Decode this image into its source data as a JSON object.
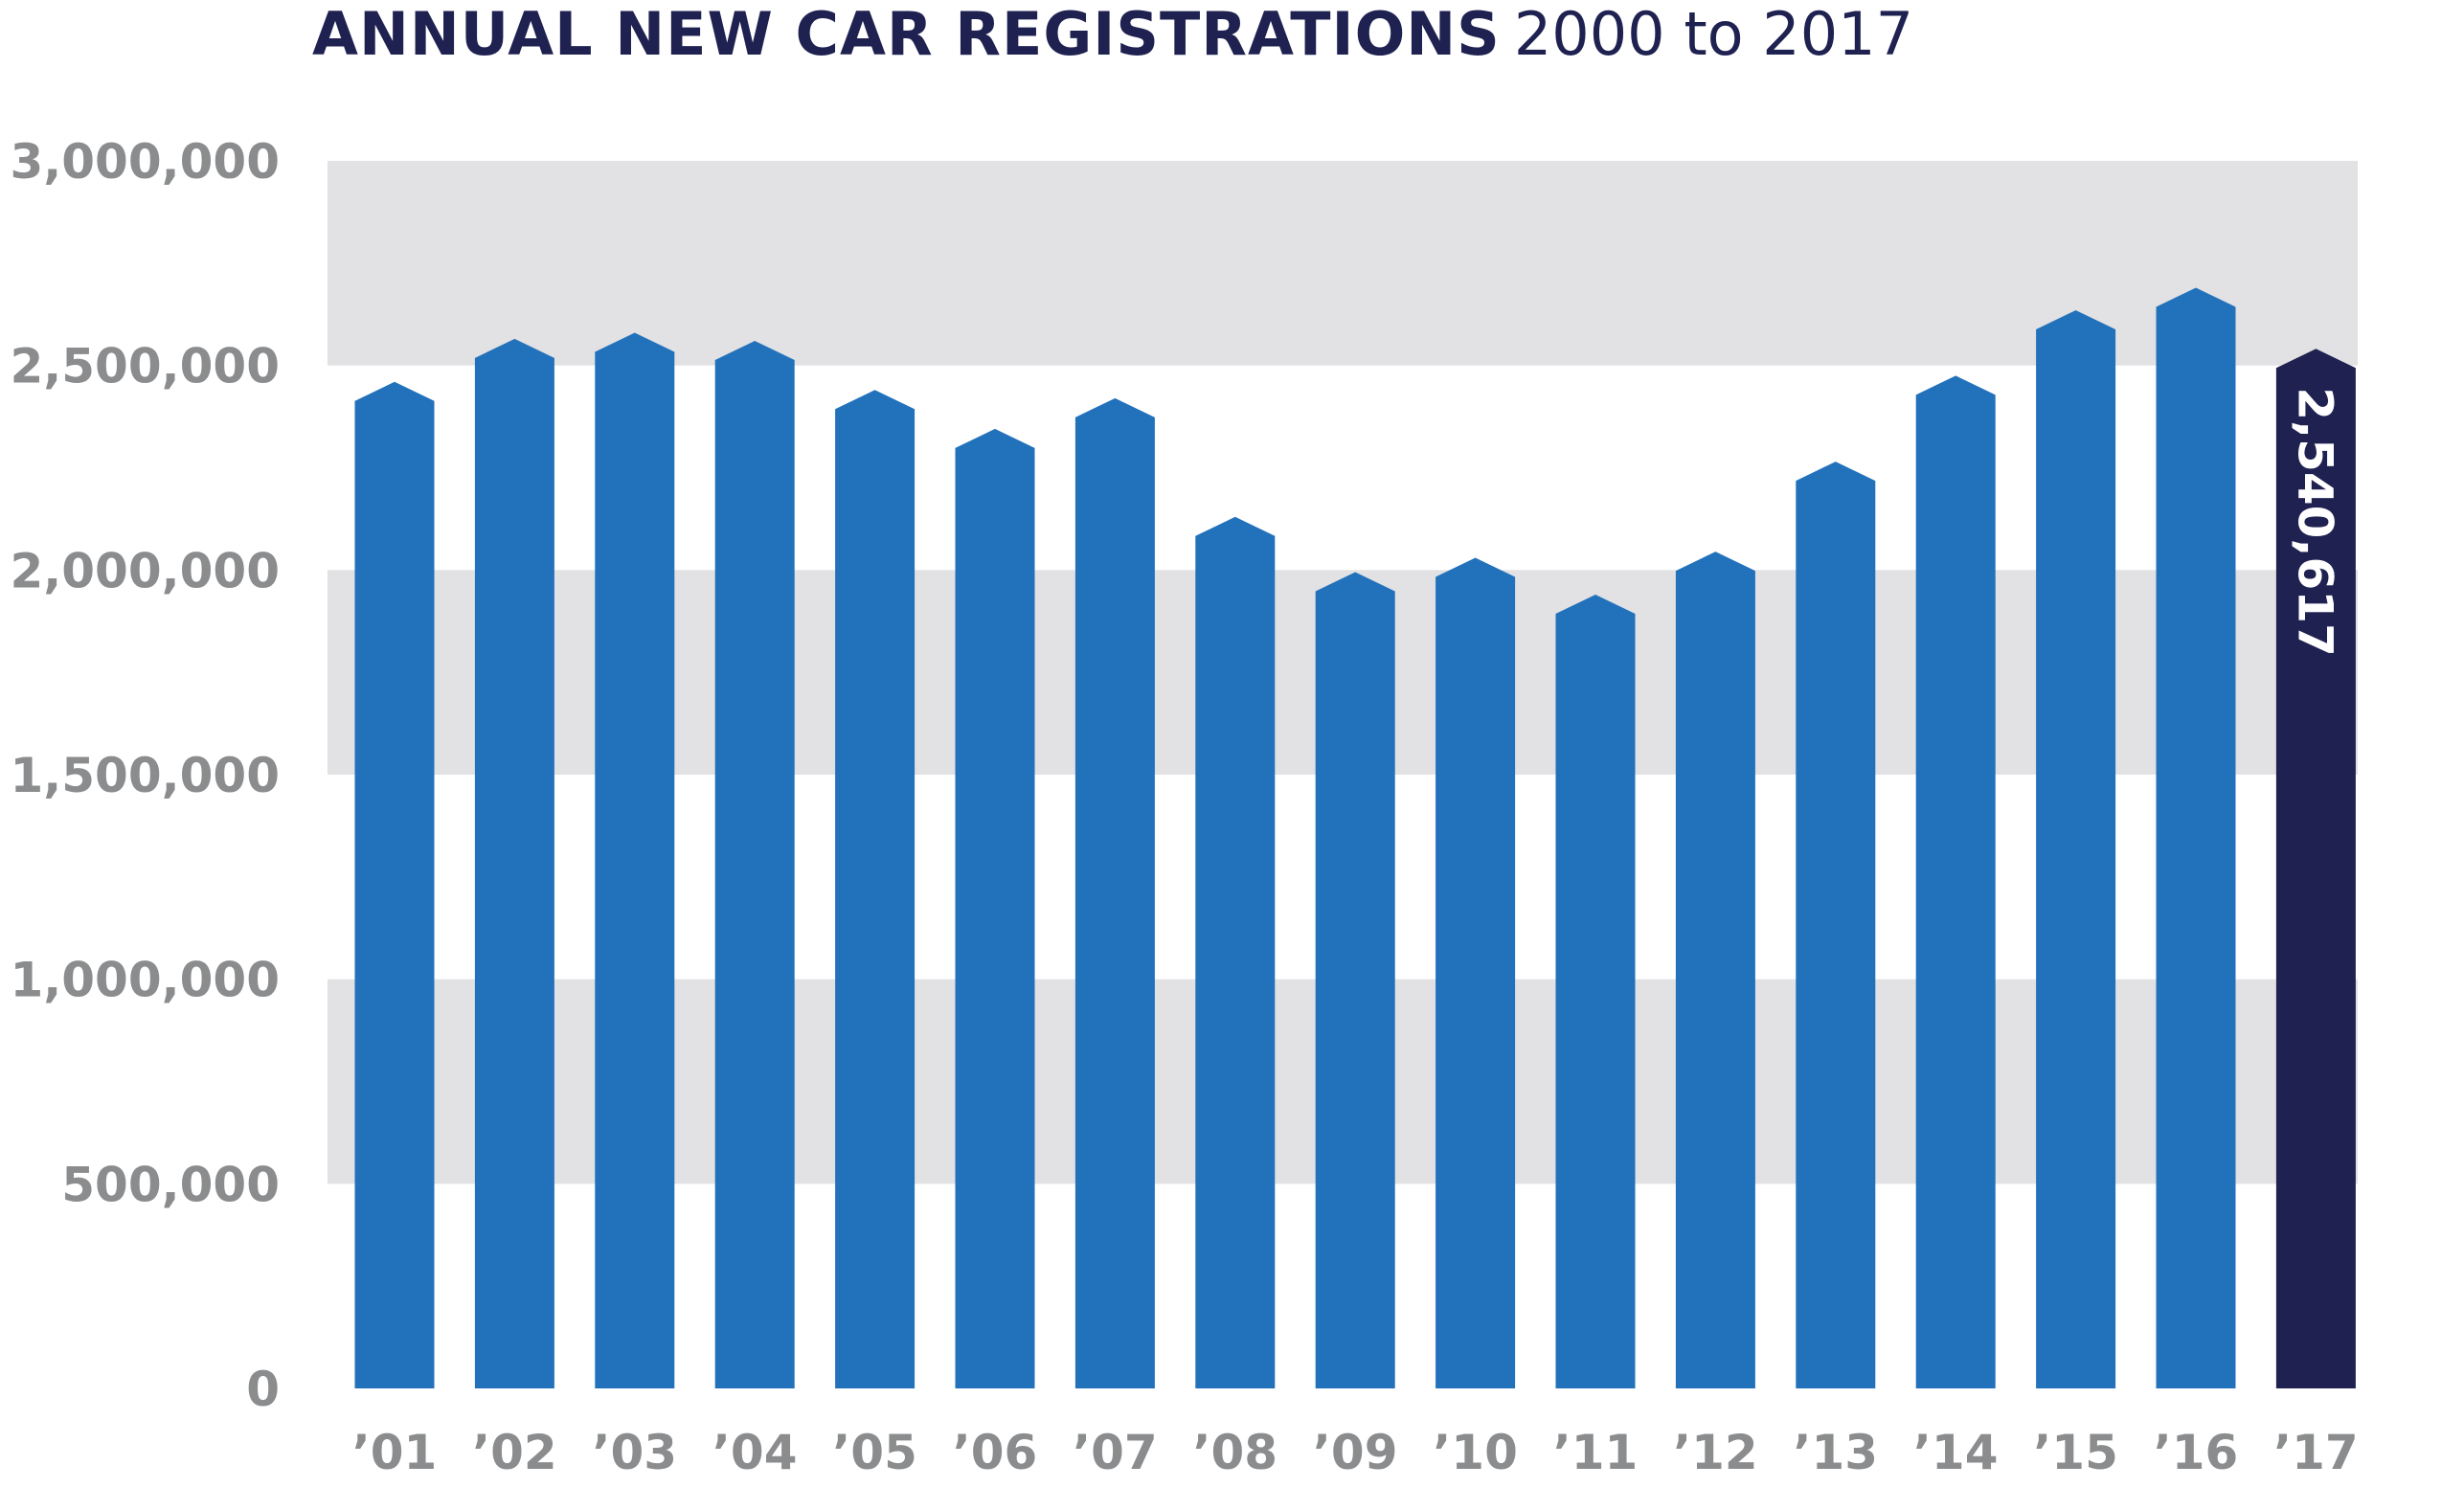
{
  "title": {
    "main": "ANNUAL NEW CAR REGISTRATIONS",
    "sub": "2000 to 2017"
  },
  "colors": {
    "bar": "#2272bb",
    "highlight_bar": "#1f2251",
    "band": "#e2e1e3",
    "tick_text": "#8b8c8e",
    "title_text": "#1f2251",
    "value_text": "#ffffff"
  },
  "chart_data": {
    "type": "bar",
    "title": "ANNUAL NEW CAR REGISTRATIONS 2000 to 2017",
    "xlabel": "",
    "ylabel": "",
    "categories": [
      "’01",
      "’02",
      "’03",
      "’04",
      "’05",
      "’06",
      "’07",
      "’08",
      "’09",
      "’10",
      "’11",
      "’12",
      "’13",
      "’14",
      "’15",
      "’16",
      "’17"
    ],
    "values": [
      2460000,
      2565000,
      2580000,
      2560000,
      2440000,
      2345000,
      2420000,
      2130000,
      1995000,
      2030000,
      1940000,
      2045000,
      2265000,
      2475000,
      2635000,
      2690000,
      2540617
    ],
    "highlight_index": 16,
    "highlight_label": "2,540,617",
    "ylim": [
      0,
      3000000
    ],
    "yticks": [
      0,
      500000,
      1000000,
      1500000,
      2000000,
      2500000,
      3000000
    ],
    "ytick_labels": [
      "0",
      "500,000",
      "1,000,000",
      "1,500,000",
      "2,000,000",
      "2,500,000",
      "3,000,000"
    ],
    "grid": "alternating horizontal bands",
    "legend": "none"
  }
}
